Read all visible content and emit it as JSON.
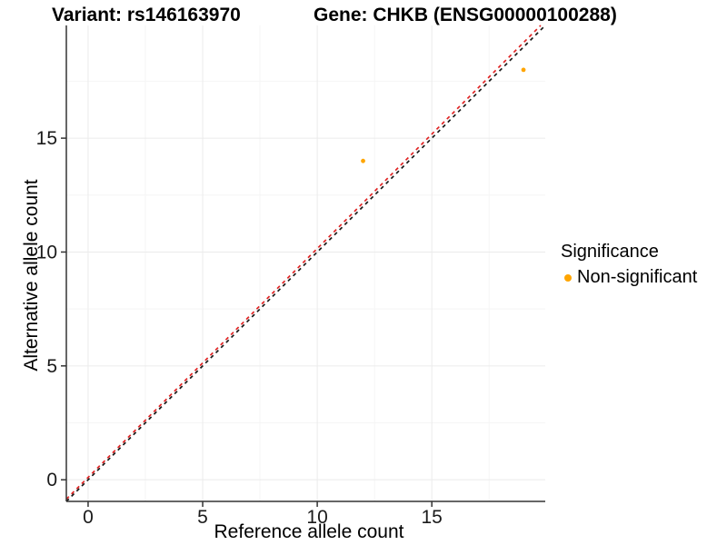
{
  "chart_data": {
    "type": "scatter",
    "title_variant": "Variant: rs146163970",
    "title_gene": "Gene: CHKB (ENSG00000100288)",
    "xlabel": "Reference allele count",
    "ylabel": "Alternative allele count",
    "xlim": [
      -0.95,
      19.95
    ],
    "ylim": [
      -0.95,
      19.95
    ],
    "x_ticks": [
      0,
      5,
      10,
      15
    ],
    "y_ticks": [
      0,
      5,
      10,
      15
    ],
    "x_minor_ticks": [
      2.5,
      7.5,
      12.5,
      17.5
    ],
    "y_minor_ticks": [
      2.5,
      7.5,
      12.5,
      17.5
    ],
    "grid": true,
    "legend_position": "right",
    "series": [
      {
        "name": "Non-significant",
        "color": "#FFA500",
        "point_radius": 2.4,
        "points": [
          {
            "x": 12,
            "y": 14
          },
          {
            "x": 19,
            "y": 18
          }
        ]
      }
    ],
    "lines": [
      {
        "name": "expected-ratio-line",
        "color": "#E02424",
        "style": "dashed",
        "x1": -0.95,
        "y1": -0.85,
        "x2": 19.75,
        "y2": 19.95
      },
      {
        "name": "identity-line",
        "color": "#1A1A1A",
        "style": "dashed",
        "x1": -0.95,
        "y1": -0.95,
        "x2": 19.95,
        "y2": 19.95
      }
    ],
    "legend": {
      "title": "Significance",
      "items": [
        {
          "label": "Non-significant",
          "color": "#FFA500"
        }
      ]
    },
    "colors": {
      "background": "#FFFFFF",
      "grid_major": "#EBEBEB",
      "grid_minor": "#F5F5F5",
      "axis_line": "#333333",
      "tick_label": "#1A1A1A"
    }
  }
}
